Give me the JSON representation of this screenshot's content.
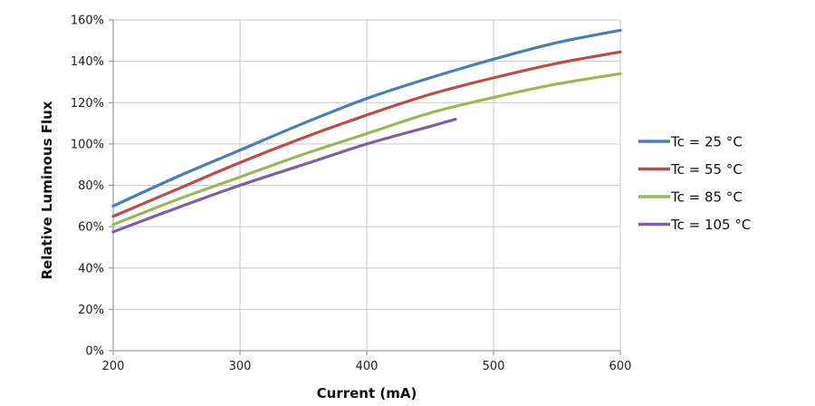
{
  "chart_data": {
    "type": "line",
    "title": "",
    "xlabel": "Current (mA)",
    "ylabel": "Relative Luminous Flux",
    "xlim": [
      200,
      600
    ],
    "ylim": [
      0,
      160
    ],
    "x_ticks": [
      200,
      300,
      400,
      500,
      600
    ],
    "x_tick_labels": [
      "200",
      "300",
      "400",
      "500",
      "600"
    ],
    "y_ticks": [
      0,
      20,
      40,
      60,
      80,
      100,
      120,
      140,
      160
    ],
    "y_tick_labels": [
      "0%",
      "20%",
      "40%",
      "60%",
      "80%",
      "100%",
      "120%",
      "140%",
      "160%"
    ],
    "grid": "vertical and horizontal major gridlines",
    "legend_position": "right",
    "series": [
      {
        "name": "Tc = 25 °C",
        "color": "#4a7ebb",
        "x": [
          200,
          250,
          300,
          350,
          400,
          450,
          500,
          550,
          600
        ],
        "y": [
          70,
          84,
          97,
          110,
          122,
          132,
          141,
          149,
          155
        ]
      },
      {
        "name": "Tc = 55 °C",
        "color": "#be4b48",
        "x": [
          200,
          250,
          300,
          350,
          400,
          450,
          500,
          550,
          600
        ],
        "y": [
          65,
          78,
          91,
          103,
          114,
          124,
          132,
          139,
          144.5
        ]
      },
      {
        "name": "Tc = 85 °C",
        "color": "#98b954",
        "x": [
          200,
          250,
          300,
          350,
          400,
          450,
          500,
          550,
          600
        ],
        "y": [
          61,
          73,
          84,
          95,
          105,
          115,
          122.5,
          129,
          134
        ]
      },
      {
        "name": "Tc = 105 °C",
        "color": "#7d60a0",
        "x": [
          200,
          250,
          300,
          350,
          400,
          450,
          470
        ],
        "y": [
          57.5,
          69,
          80,
          90,
          100,
          108.5,
          112
        ]
      }
    ]
  }
}
